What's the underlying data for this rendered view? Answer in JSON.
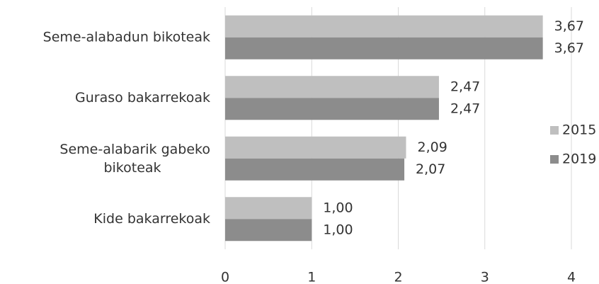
{
  "chart_data": {
    "type": "hbar",
    "categories": [
      "Seme-alabadun bikoteak",
      "Guraso bakarrekoak",
      "Seme-alabarik gabeko bikoteak",
      "Kide bakarrekoak"
    ],
    "series": [
      {
        "name": "2015",
        "color": "#bfbfbf",
        "values": [
          3.67,
          2.47,
          2.09,
          1.0
        ],
        "value_labels": [
          "3,67",
          "2,47",
          "2,09",
          "1,00"
        ]
      },
      {
        "name": "2019",
        "color": "#8c8c8c",
        "values": [
          3.67,
          2.47,
          2.07,
          1.0
        ],
        "value_labels": [
          "3,67",
          "2,47",
          "2,07",
          "1,00"
        ]
      }
    ],
    "xlim": [
      0,
      4
    ],
    "xticks": [
      0,
      1,
      2,
      3,
      4
    ],
    "grid": true,
    "legend": "right"
  }
}
